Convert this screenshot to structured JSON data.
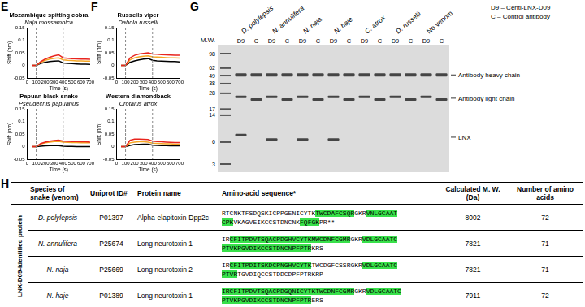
{
  "panel_labels": [
    "E",
    "F",
    "G",
    "H"
  ],
  "chart_data": [
    {
      "type": "line",
      "title": "Mozambique spitting cobra",
      "subtitle": "Naja mossambica",
      "x_label": "Time (s)",
      "y_label": "Shift (nm)",
      "x": [
        50,
        100,
        150,
        200,
        250,
        300,
        350,
        400,
        450,
        500,
        550,
        600,
        650,
        700
      ],
      "series": [
        {
          "color": "#e8251e",
          "values": [
            0,
            0,
            0.015,
            0.025,
            0.032,
            0.038,
            0.042,
            0.03,
            0.028,
            0.027,
            0.026,
            0.025,
            0.025,
            0.024
          ]
        },
        {
          "color": "#f5a623",
          "values": [
            0,
            0,
            0.012,
            0.02,
            0.025,
            0.028,
            0.03,
            0.022,
            0.02,
            0.019,
            0.018,
            0.018,
            0.017,
            0.017
          ]
        },
        {
          "color": "#000000",
          "values": [
            0,
            0,
            0.008,
            0.012,
            0.015,
            0.017,
            0.018,
            0.01,
            0.008,
            0.007,
            0.006,
            0.005,
            0.005,
            0.004
          ]
        }
      ],
      "xlim": [
        0,
        700
      ],
      "xticks": [
        0,
        100,
        200,
        300,
        400,
        500,
        600,
        700
      ],
      "ylim": [
        -0.05,
        0.15
      ],
      "yticks": [
        -0.05,
        0,
        0.05,
        0.1,
        0.15
      ],
      "grid": false,
      "vlines": [
        100,
        400
      ]
    },
    {
      "type": "line",
      "title": "Papuan black snake",
      "subtitle": "Pseudechis papuanus",
      "x_label": "Time (s)",
      "y_label": "Shift (nm)",
      "x": [
        50,
        100,
        150,
        200,
        250,
        300,
        350,
        400,
        450,
        500,
        550,
        600,
        650,
        700
      ],
      "series": [
        {
          "color": "#e8251e",
          "values": [
            0,
            0,
            0.012,
            0.018,
            0.022,
            0.024,
            0.026,
            0.022,
            0.021,
            0.02,
            0.02,
            0.019,
            0.019,
            0.018
          ]
        },
        {
          "color": "#f5a623",
          "values": [
            0,
            0,
            0.01,
            0.015,
            0.018,
            0.02,
            0.021,
            0.018,
            0.017,
            0.016,
            0.016,
            0.015,
            0.015,
            0.015
          ]
        },
        {
          "color": "#000000",
          "values": [
            0,
            0,
            0.002,
            0.003,
            0.004,
            0.004,
            0.004,
            0.002,
            0.001,
            0.001,
            0,
            0,
            0,
            0
          ]
        }
      ],
      "xlim": [
        0,
        700
      ],
      "xticks": [
        0,
        100,
        200,
        300,
        400,
        500,
        600,
        700
      ],
      "ylim": [
        -0.05,
        0.15
      ],
      "yticks": [
        -0.05,
        0,
        0.05,
        0.1,
        0.15
      ],
      "grid": false,
      "vlines": [
        100,
        400
      ]
    },
    {
      "type": "line",
      "title": "Russells viper",
      "subtitle": "Dabola russelii",
      "x_label": "Time (s)",
      "y_label": "Shift (nm)",
      "x": [
        50,
        100,
        150,
        200,
        250,
        300,
        350,
        400,
        450,
        500,
        550,
        600,
        650,
        700
      ],
      "series": [
        {
          "color": "#e8251e",
          "values": [
            0,
            0,
            0.03,
            0.04,
            0.045,
            0.048,
            0.05,
            0.045,
            0.044,
            0.043,
            0.042,
            0.041,
            0.04,
            0.04
          ]
        },
        {
          "color": "#f5a623",
          "values": [
            0,
            0,
            0.022,
            0.03,
            0.034,
            0.036,
            0.038,
            0.034,
            0.033,
            0.032,
            0.031,
            0.03,
            0.03,
            0.029
          ]
        },
        {
          "color": "#000000",
          "values": [
            0,
            0,
            0.012,
            0.018,
            0.022,
            0.025,
            0.027,
            0.02,
            0.018,
            0.017,
            0.016,
            0.015,
            0.015,
            0.014
          ]
        }
      ],
      "xlim": [
        0,
        700
      ],
      "xticks": [
        0,
        100,
        200,
        300,
        400,
        500,
        600,
        700
      ],
      "ylim": [
        -0.05,
        0.15
      ],
      "yticks": [
        -0.05,
        0,
        0.05,
        0.1,
        0.15
      ],
      "grid": false,
      "vlines": [
        100,
        400
      ]
    },
    {
      "type": "line",
      "title": "Western diamondback",
      "subtitle": "Crotalus atrox",
      "x_label": "Time (s)",
      "y_label": "Shift (nm)",
      "x": [
        50,
        100,
        150,
        200,
        250,
        300,
        350,
        400,
        450,
        500,
        550,
        600,
        650,
        700
      ],
      "series": [
        {
          "color": "#e8251e",
          "values": [
            0,
            0,
            0.025,
            0.03,
            0.03,
            0.029,
            0.028,
            0.022,
            0.02,
            0.019,
            0.018,
            0.017,
            0.016,
            0.016
          ]
        },
        {
          "color": "#f5a623",
          "values": [
            0,
            0,
            0.015,
            0.018,
            0.019,
            0.019,
            0.018,
            0.014,
            0.013,
            0.012,
            0.011,
            0.011,
            0.01,
            0.01
          ]
        },
        {
          "color": "#000000",
          "values": [
            0,
            0,
            0.005,
            0.008,
            0.009,
            0.01,
            0.01,
            0.006,
            0.005,
            0.004,
            0.004,
            0.003,
            0.003,
            0.003
          ]
        }
      ],
      "xlim": [
        0,
        700
      ],
      "xticks": [
        0,
        100,
        200,
        300,
        400,
        500,
        600,
        700
      ],
      "ylim": [
        -0.05,
        0.15
      ],
      "yticks": [
        -0.05,
        0,
        0.05,
        0.1,
        0.15
      ],
      "grid": false,
      "vlines": [
        100,
        400
      ]
    }
  ],
  "gel": {
    "mw_label": "M.W.",
    "markers": [
      98,
      62,
      49,
      38,
      28,
      17,
      14,
      6,
      3
    ],
    "groups": [
      {
        "name": "D. polylepsis",
        "lanes": [
          {
            "label": "D9",
            "bands": [
              50,
              25,
              7.5
            ]
          },
          {
            "label": "C",
            "bands": [
              50,
              23
            ]
          }
        ]
      },
      {
        "name": "N. annulifera",
        "lanes": [
          {
            "label": "D9",
            "bands": [
              50,
              25,
              6.5
            ]
          },
          {
            "label": "C",
            "bands": [
              50,
              23
            ]
          }
        ]
      },
      {
        "name": "N. naja",
        "lanes": [
          {
            "label": "D9",
            "bands": [
              50,
              25,
              6.5
            ]
          },
          {
            "label": "C",
            "bands": [
              50,
              23
            ]
          }
        ]
      },
      {
        "name": "N. haje",
        "lanes": [
          {
            "label": "D9",
            "bands": [
              50,
              25,
              6.5
            ]
          },
          {
            "label": "C",
            "bands": [
              50,
              23
            ]
          }
        ]
      },
      {
        "name": "C. atrox",
        "lanes": [
          {
            "label": "D9",
            "bands": [
              50,
              25
            ]
          },
          {
            "label": "C",
            "bands": [
              50,
              23
            ]
          }
        ]
      },
      {
        "name": "D. russelii",
        "lanes": [
          {
            "label": "D9",
            "bands": [
              50,
              25
            ]
          },
          {
            "label": "C",
            "bands": [
              50,
              23
            ]
          }
        ]
      },
      {
        "name": "No venom",
        "lanes": [
          {
            "label": "D9",
            "bands": [
              50,
              25
            ]
          },
          {
            "label": "C",
            "bands": [
              50,
              23
            ]
          }
        ]
      }
    ],
    "band_labels": [
      {
        "text": "Antibody heavy chain",
        "mw": 50
      },
      {
        "text": "Antibody light chain",
        "mw": 24
      },
      {
        "text": "LNX",
        "mw": 7
      }
    ],
    "key": [
      "D9 – Centi-LNX-D09",
      "C – Control antibody"
    ]
  },
  "table": {
    "row_group_label": "LNX-D09-identified protein",
    "header": [
      "Species of snake (venom)",
      "Uniprot ID#",
      "Protein name",
      "Amino-acid sequence*",
      "Calculated M. W. (Da)",
      "Number of amino acids"
    ],
    "rows": [
      {
        "species": "D. polylepsis",
        "uniprot": "P01397",
        "protein": "Alpha-elapitoxin-Dpp2c",
        "sequence_lines": [
          [
            {
              "text": "RTCNKTFSDQSKICPPGENICYTK",
              "highlight": false
            },
            {
              "text": "TWCDAFCSQR",
              "highlight": true
            },
            {
              "text": "GKR",
              "highlight": false
            },
            {
              "text": "VNLGCAAT",
              "highlight": true
            }
          ],
          [
            {
              "text": "CPK",
              "highlight": true
            },
            {
              "text": "VKAGVEIKCCSTDNCNK",
              "highlight": false
            },
            {
              "text": "FQFGK",
              "highlight": true
            },
            {
              "text": "PR**",
              "highlight": false
            }
          ]
        ],
        "mw": 8002,
        "aa": 72
      },
      {
        "species": "N. annulifera",
        "uniprot": "P25674",
        "protein": "Long neurotoxin 1",
        "sequence_lines": [
          [
            {
              "text": "IR",
              "highlight": false
            },
            {
              "text": "CFITPDVTSQACPDGHVCYTKMWCDNFCGMR",
              "highlight": true
            },
            {
              "text": "GKR",
              "highlight": false
            },
            {
              "text": "VDLGCAATC",
              "highlight": true
            }
          ],
          [
            {
              "text": "PTVKPGVDIKCCSTDNCNPFPTR",
              "highlight": true
            },
            {
              "text": "KRS",
              "highlight": false
            }
          ]
        ],
        "mw": 7821,
        "aa": 71
      },
      {
        "species": "N. naja",
        "uniprot": "P25669",
        "protein": "Long neurotoxin 2",
        "sequence_lines": [
          [
            {
              "text": "IR",
              "highlight": false
            },
            {
              "text": "CFITPDITSKDCPNGHVCYTK",
              "highlight": true
            },
            {
              "text": "TWCDGFCSSRGKR",
              "highlight": false
            },
            {
              "text": "VDLGCAATC",
              "highlight": true
            }
          ],
          [
            {
              "text": "PTVR",
              "highlight": true
            },
            {
              "text": "TGVDIQCCSTDDCDPFPTRKRP",
              "highlight": false
            }
          ]
        ],
        "mw": 7821,
        "aa": 71
      },
      {
        "species": "N. haje",
        "uniprot": "P01389",
        "protein": "Long neurotoxin 1",
        "sequence_lines": [
          [
            {
              "text": "IRCFITPDVTSQACPDGQNICYTKTWCDNFCGMR",
              "highlight": true
            },
            {
              "text": "GKR",
              "highlight": false
            },
            {
              "text": "VDLGCAATC",
              "highlight": true
            }
          ],
          [
            {
              "text": "PTVKPGVDIKCCSTDNCNPFPTR",
              "highlight": true
            },
            {
              "text": "ERS",
              "highlight": false
            }
          ]
        ],
        "mw": 7911,
        "aa": 72
      }
    ]
  }
}
